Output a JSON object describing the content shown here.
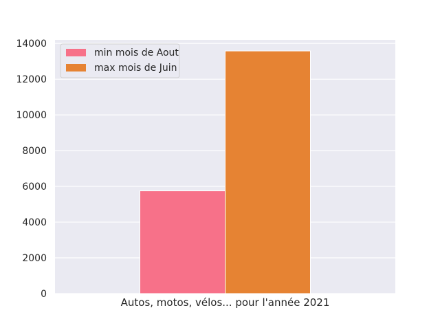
{
  "chart_data": {
    "type": "bar",
    "categories": [
      "Autos, motos, vélos... pour l'année 2021"
    ],
    "series": [
      {
        "name": "min mois de Aout",
        "values": [
          5750
        ],
        "color": "#f77189"
      },
      {
        "name": "max mois de Juin",
        "values": [
          13580
        ],
        "color": "#e68333"
      }
    ],
    "title": "",
    "xlabel": "",
    "ylabel": "",
    "ylim": [
      0,
      14200
    ],
    "yticks": [
      0,
      2000,
      4000,
      6000,
      8000,
      10000,
      12000,
      14000
    ],
    "ytick_labels": [
      "0",
      "2000",
      "4000",
      "6000",
      "8000",
      "10000",
      "12000",
      "14000"
    ],
    "grid": true,
    "legend_position": "top-left",
    "background_color": "#eaeaf2"
  }
}
